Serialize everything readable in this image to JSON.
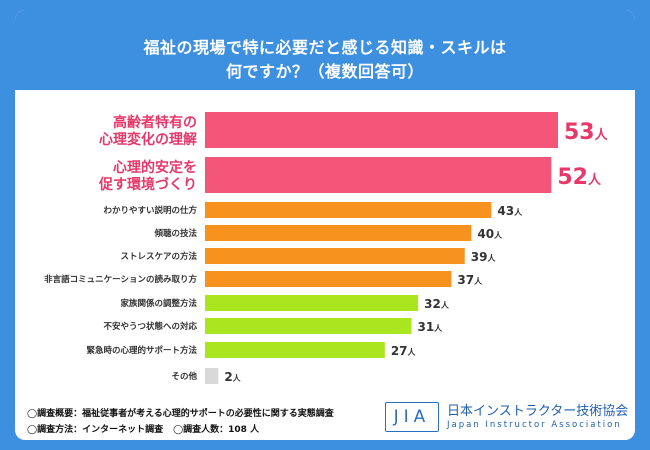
{
  "header": {
    "title_line1": "福祉の現場で特に必要だと感じる知識・スキルは",
    "title_line2": "何ですか？（複数回答可）"
  },
  "chart_data": {
    "type": "bar",
    "orientation": "horizontal",
    "title": "福祉の現場で特に必要だと感じる知識・スキルは何ですか？（複数回答可）",
    "unit": "人",
    "categories": [
      [
        "高齢者特有の",
        "心理変化の理解"
      ],
      [
        "心理的安定を",
        "促す環境づくり"
      ],
      [
        "わかりやすい説明の仕方"
      ],
      [
        "傾聴の技法"
      ],
      [
        "ストレスケアの方法"
      ],
      [
        "非言語コミュニケーションの読み取り方"
      ],
      [
        "家族関係の調整方法"
      ],
      [
        "不安やうつ状態への対応"
      ],
      [
        "緊急時の心理的サポート方法"
      ],
      [
        "その他"
      ]
    ],
    "values": [
      53,
      52,
      43,
      40,
      39,
      37,
      32,
      31,
      27,
      2
    ],
    "colors": [
      "#f4567a",
      "#f4567a",
      "#f7921e",
      "#f7921e",
      "#f7921e",
      "#f7921e",
      "#a9e61f",
      "#a9e61f",
      "#a9e61f",
      "#d9d9d9"
    ],
    "label_colors": [
      "#e8386a",
      "#e8386a",
      "#333333",
      "#333333",
      "#333333",
      "#333333",
      "#333333",
      "#333333",
      "#333333",
      "#333333"
    ],
    "xlim": [
      0,
      53
    ]
  },
  "footer": {
    "note1": "◯調査概要：福祉従事者が考える心理的サポートの必要性に関する実態調査",
    "note2a": "◯調査方法：インターネット調査",
    "note2b": "◯調査人数：108 人"
  },
  "logo": {
    "mark": "JIA",
    "name": "日本インストラクター技術協会",
    "sub": "Japan Instructor Association"
  }
}
